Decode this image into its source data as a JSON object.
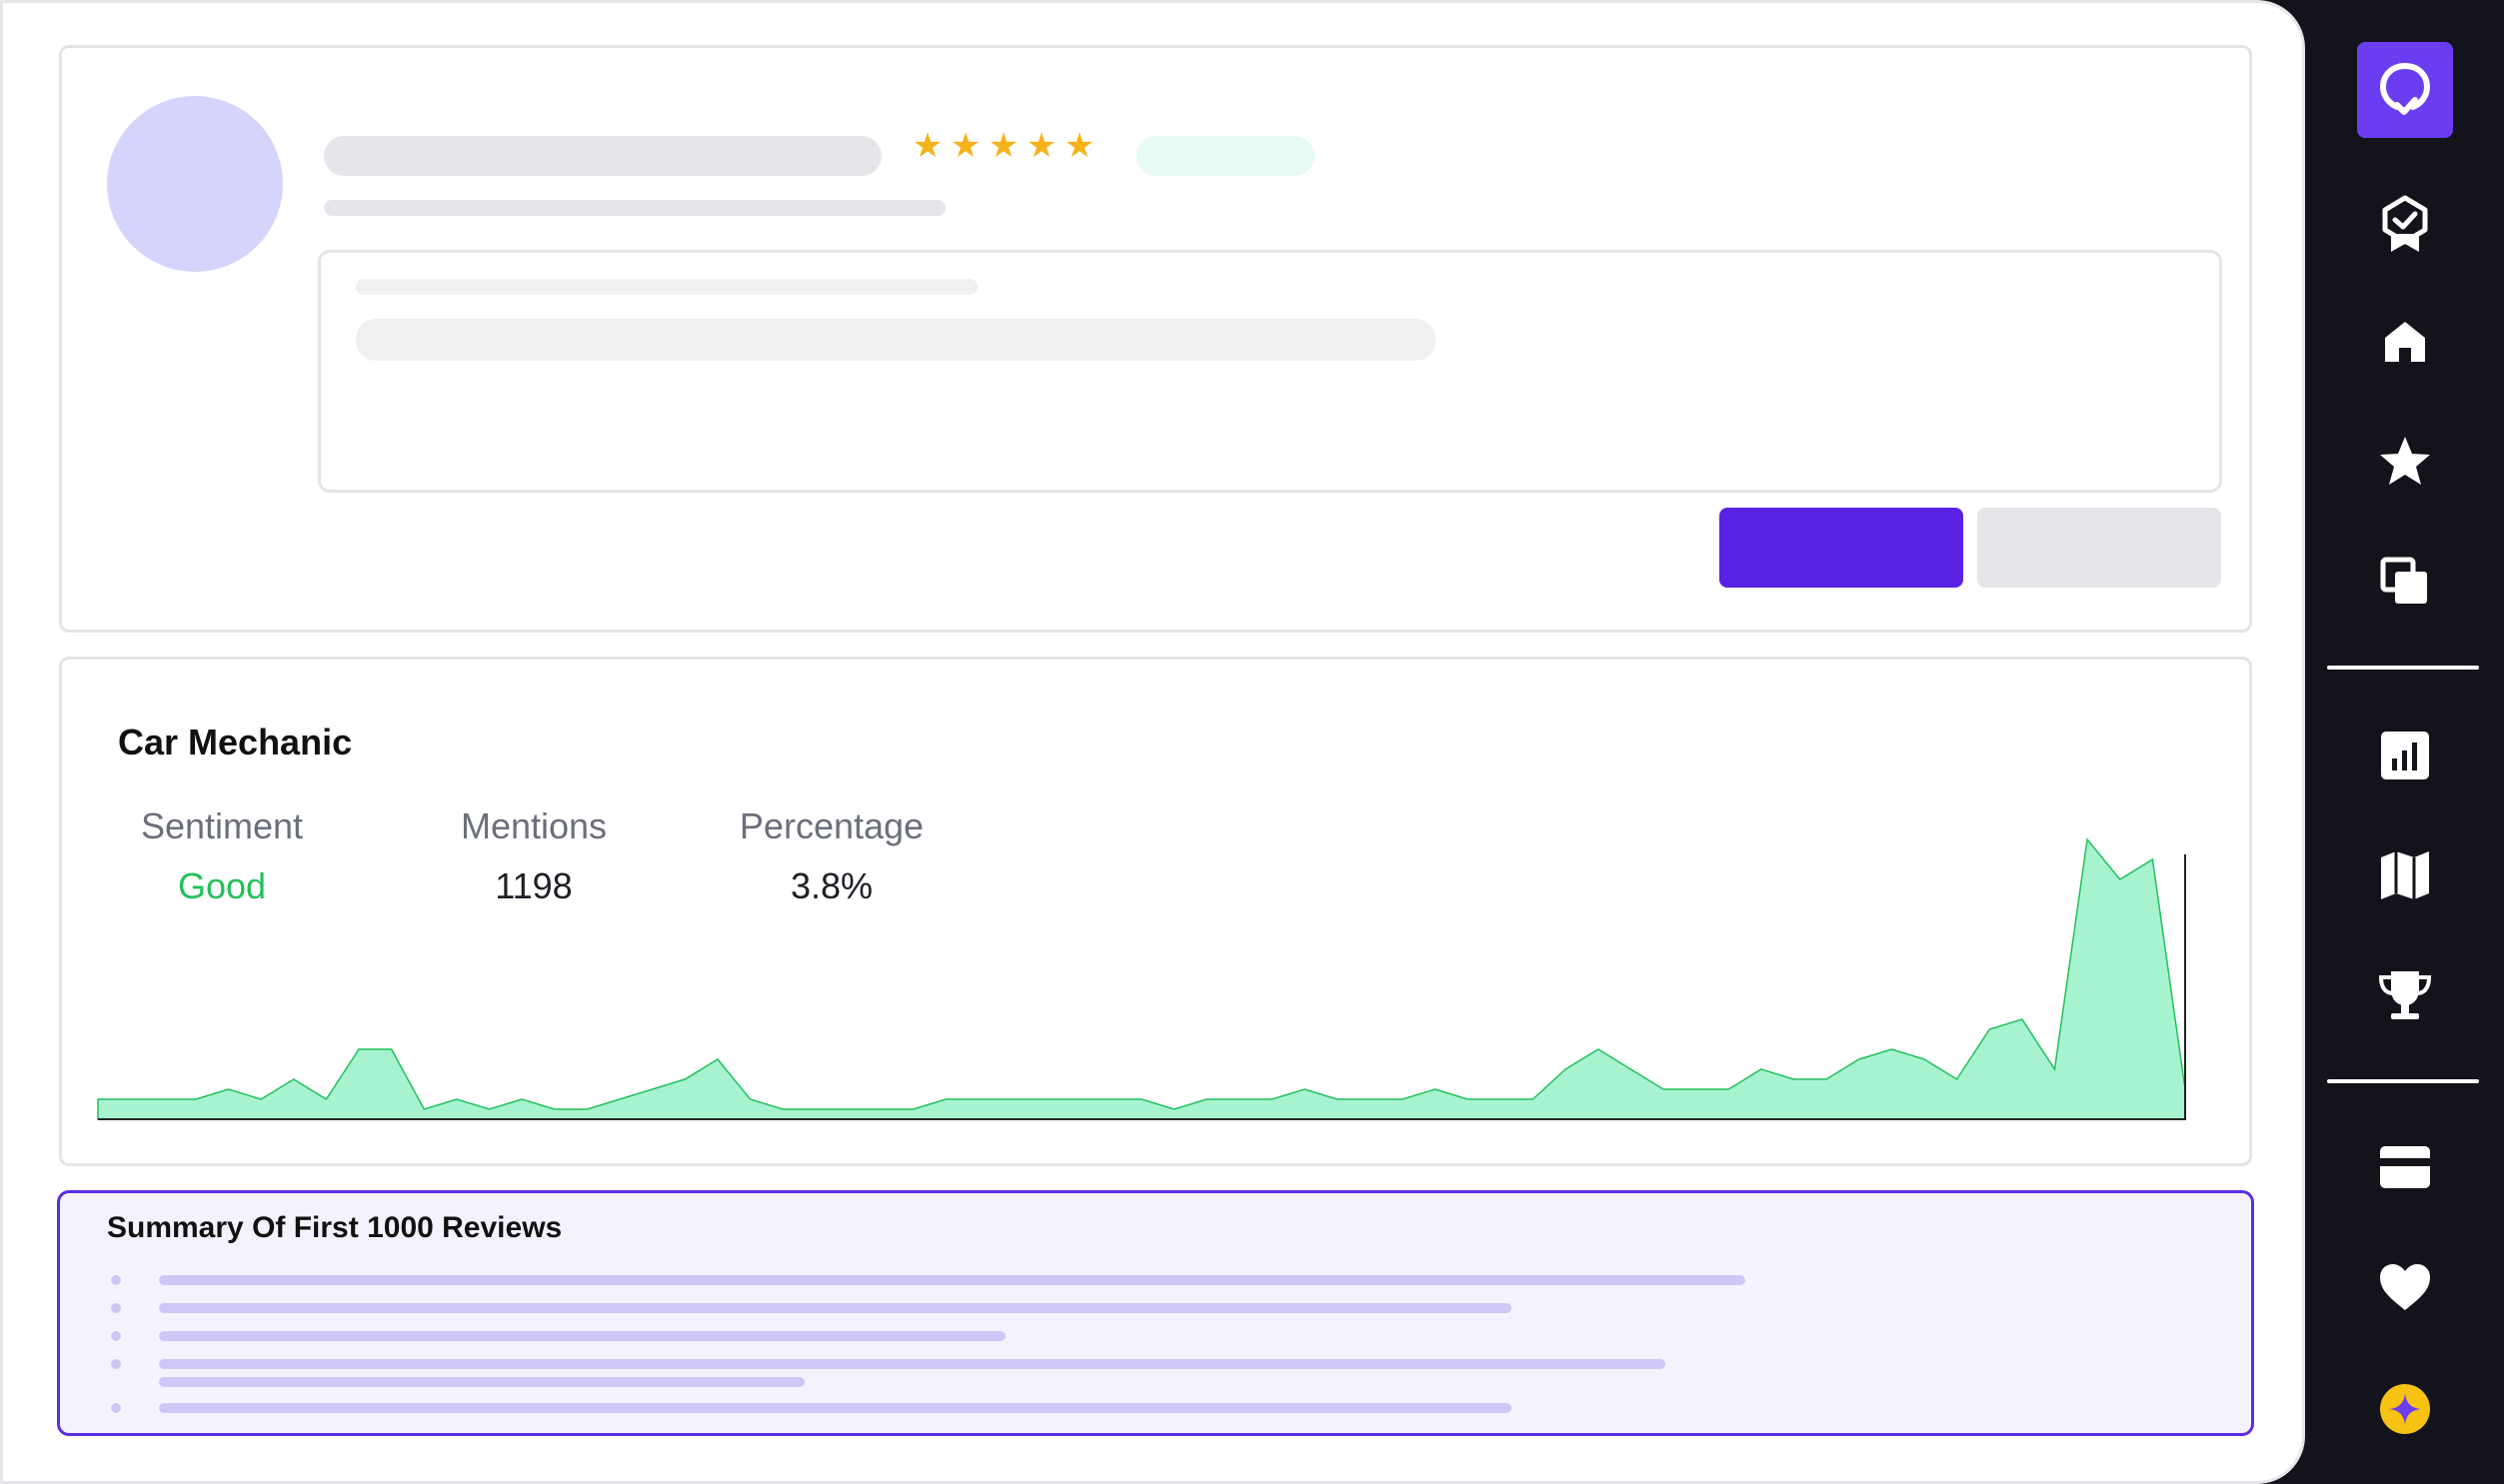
{
  "review": {
    "rating": 5
  },
  "keyword_card": {
    "title": "Car Mechanic",
    "stats": [
      {
        "label": "Sentiment",
        "value": "Good"
      },
      {
        "label": "Mentions",
        "value": "1198"
      },
      {
        "label": "Percentage",
        "value": "3.8%"
      }
    ]
  },
  "chart_data": {
    "type": "area",
    "series": [
      {
        "values": [
          2,
          2,
          2,
          2,
          3,
          2,
          4,
          2,
          7,
          7,
          1,
          2,
          1,
          2,
          1,
          1,
          2,
          3,
          4,
          6,
          2,
          1,
          1,
          1,
          1,
          1,
          2,
          2,
          2,
          2,
          2,
          2,
          2,
          1,
          2,
          2,
          2,
          3,
          2,
          2,
          2,
          3,
          2,
          2,
          2,
          5,
          7,
          5,
          3,
          3,
          3,
          5,
          4,
          4,
          6,
          7,
          6,
          4,
          9,
          10,
          5,
          28,
          24,
          26,
          3
        ],
        "color": "#a7f3d0",
        "line_color": "#22c05a"
      }
    ],
    "grid": false,
    "legend": false
  },
  "summary": {
    "title": "Summary Of First 1000 Reviews"
  },
  "sidebar": {
    "items": [
      {
        "icon": "location-check-icon",
        "active": true
      },
      {
        "icon": "badge-check-icon"
      },
      {
        "icon": "home-icon"
      },
      {
        "icon": "star-icon"
      },
      {
        "icon": "copy-icon"
      },
      {
        "icon": "bar-chart-icon"
      },
      {
        "icon": "map-icon"
      },
      {
        "icon": "trophy-icon"
      },
      {
        "icon": "credit-card-icon"
      },
      {
        "icon": "heart-icon"
      },
      {
        "icon": "sparkle-icon"
      }
    ]
  },
  "colors": {
    "accent": "#5922e2",
    "sentiment_good": "#22c05a",
    "star": "#f6b21b",
    "sidebar_bg": "#13131b"
  }
}
